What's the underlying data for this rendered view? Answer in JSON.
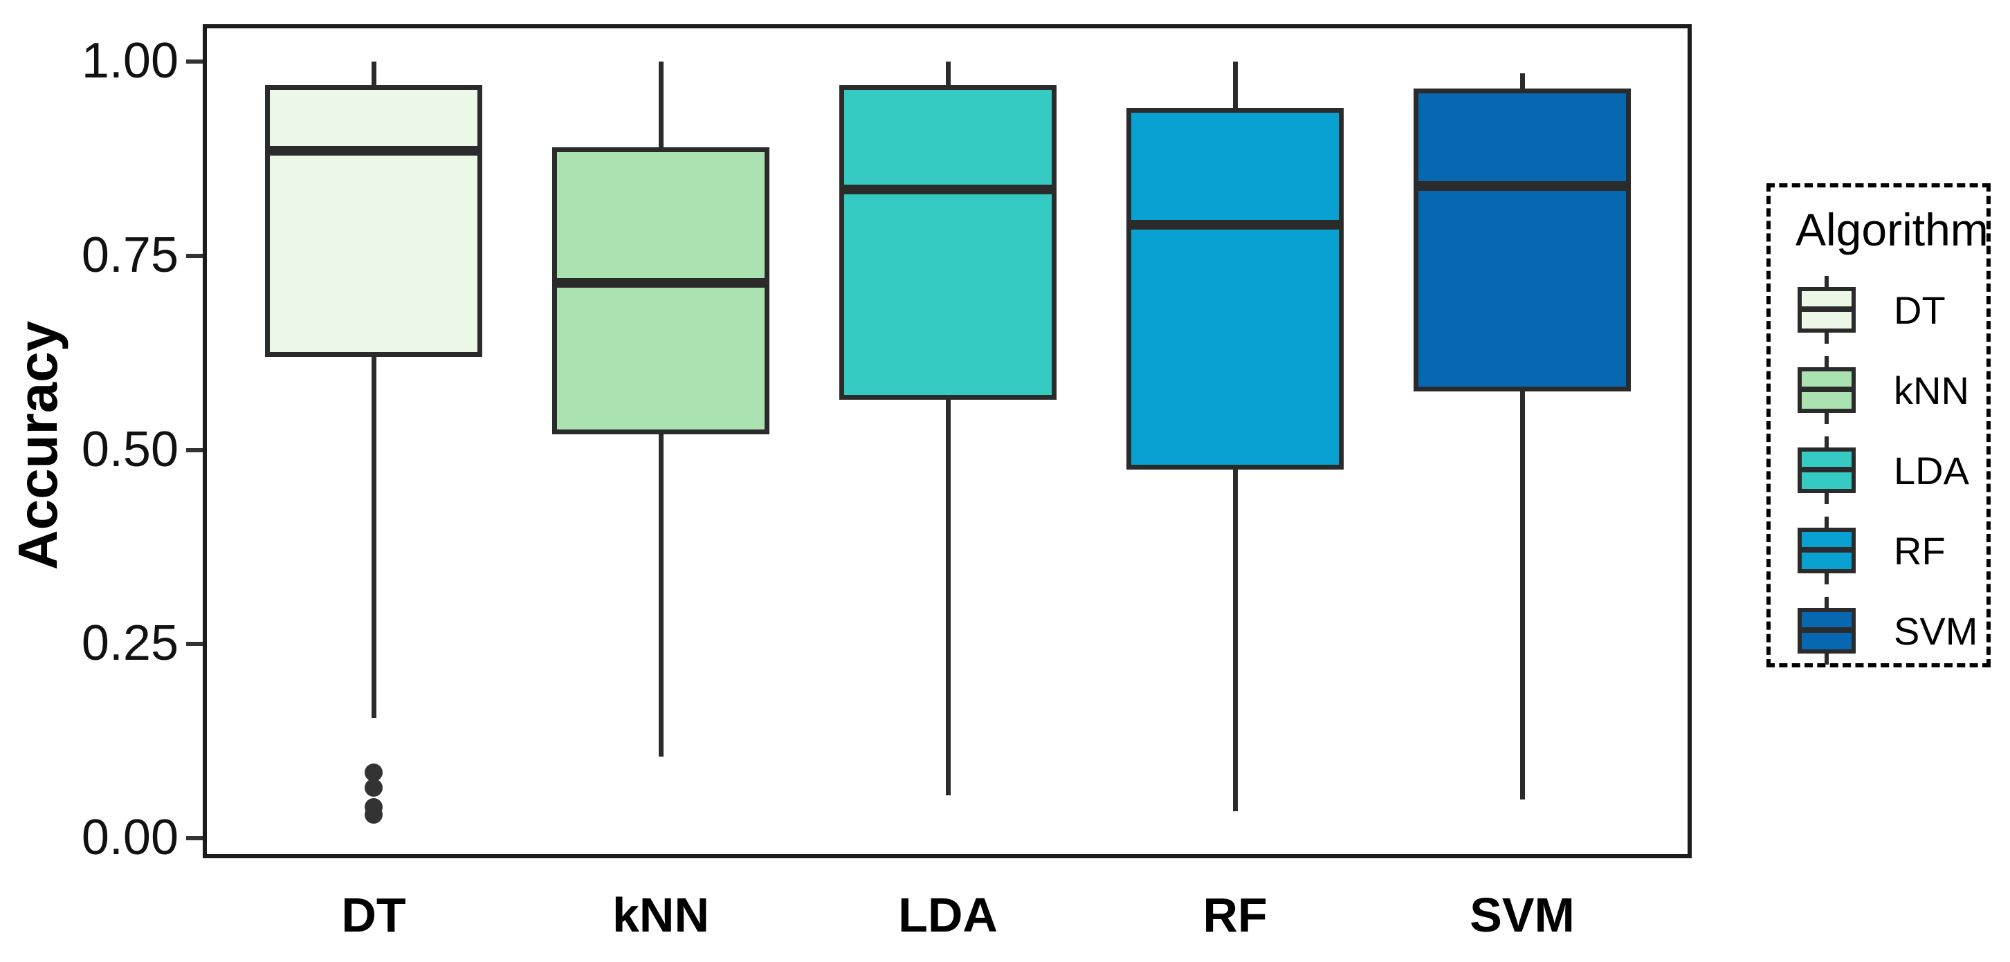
{
  "figure": {
    "background": "#FFFFFF"
  },
  "axes": {
    "y": {
      "label": "Accuracy",
      "tick_labels": [
        "1.00",
        "0.75",
        "0.50",
        "0.25",
        "0.00"
      ],
      "tick_values": [
        1.0,
        0.75,
        0.5,
        0.25,
        0.0
      ]
    },
    "x": {
      "categories": [
        "DT",
        "kNN",
        "LDA",
        "RF",
        "SVM"
      ]
    }
  },
  "legend": {
    "title": "Algorithm",
    "items": [
      {
        "label": "DT",
        "color": "#EDF7E7"
      },
      {
        "label": "kNN",
        "color": "#ABE2B2"
      },
      {
        "label": "LDA",
        "color": "#35CBC2"
      },
      {
        "label": "RF",
        "color": "#09A0D2"
      },
      {
        "label": "SVM",
        "color": "#0767B1"
      }
    ]
  },
  "chart_data": {
    "type": "boxplot",
    "title": "",
    "xlabel": "",
    "ylabel": "Accuracy",
    "ylim": [
      0,
      1.05
    ],
    "grid": false,
    "legend_position": "right",
    "categories": [
      "DT",
      "kNN",
      "LDA",
      "RF",
      "SVM"
    ],
    "series": [
      {
        "name": "DT",
        "fill": "#EDF7E7",
        "whisker_low": 0.155,
        "q1": 0.62,
        "median": 0.885,
        "q3": 0.97,
        "whisker_high": 1.0,
        "outliers": [
          0.085,
          0.065,
          0.04,
          0.03
        ]
      },
      {
        "name": "kNN",
        "fill": "#ABE2B2",
        "whisker_low": 0.105,
        "q1": 0.52,
        "median": 0.715,
        "q3": 0.89,
        "whisker_high": 1.0,
        "outliers": []
      },
      {
        "name": "LDA",
        "fill": "#35CBC2",
        "whisker_low": 0.055,
        "q1": 0.565,
        "median": 0.835,
        "q3": 0.97,
        "whisker_high": 1.0,
        "outliers": []
      },
      {
        "name": "RF",
        "fill": "#09A0D2",
        "whisker_low": 0.035,
        "q1": 0.475,
        "median": 0.79,
        "q3": 0.94,
        "whisker_high": 1.0,
        "outliers": []
      },
      {
        "name": "SVM",
        "fill": "#0767B1",
        "whisker_low": 0.05,
        "q1": 0.575,
        "median": 0.84,
        "q3": 0.965,
        "whisker_high": 0.985,
        "outliers": []
      }
    ],
    "line_color": "#2B2B2B"
  }
}
